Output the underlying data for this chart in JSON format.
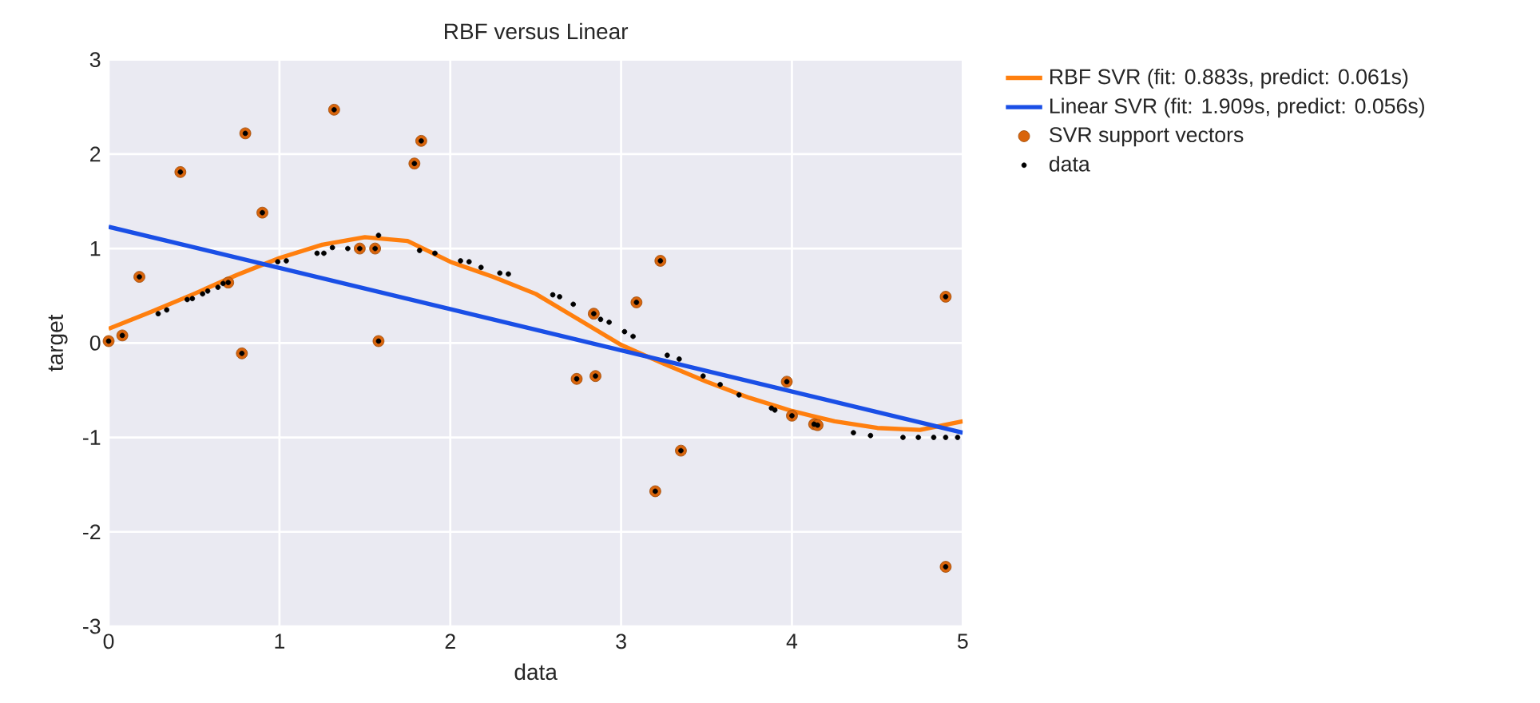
{
  "chart_data": {
    "type": "scatter",
    "title": "RBF versus Linear",
    "xlabel": "data",
    "ylabel": "target",
    "xlim": [
      0,
      5
    ],
    "ylim": [
      -3,
      3
    ],
    "xticks": [
      0,
      1,
      2,
      3,
      4,
      5
    ],
    "yticks": [
      -3,
      -2,
      -1,
      0,
      1,
      2,
      3
    ],
    "grid": true,
    "legend": "right",
    "series": [
      {
        "name": "RBF SVR (fit: 0.883s, predict: 0.061s)",
        "type": "line",
        "color": "#ff7f0e",
        "x": [
          0,
          0.25,
          0.5,
          0.75,
          1,
          1.25,
          1.5,
          1.75,
          2,
          2.25,
          2.5,
          2.75,
          3,
          3.25,
          3.5,
          3.75,
          4,
          4.25,
          4.5,
          4.75,
          5
        ],
        "values": [
          0.15,
          0.33,
          0.52,
          0.72,
          0.9,
          1.04,
          1.12,
          1.08,
          0.86,
          0.7,
          0.52,
          0.25,
          -0.02,
          -0.22,
          -0.41,
          -0.58,
          -0.72,
          -0.83,
          -0.9,
          -0.92,
          -0.83
        ]
      },
      {
        "name": "Linear SVR (fit: 1.909s, predict: 0.056s)",
        "type": "line",
        "color": "#1a4fe6",
        "x": [
          0,
          5
        ],
        "values": [
          1.23,
          -0.95
        ]
      },
      {
        "name": "SVR support vectors",
        "color": "#d9650c",
        "x": [
          0,
          0.08,
          0.18,
          0.42,
          0.7,
          0.78,
          0.8,
          0.9,
          1.32,
          1.47,
          1.56,
          1.58,
          1.79,
          1.83,
          2.74,
          2.84,
          2.85,
          3.09,
          3.2,
          3.23,
          3.35,
          3.97,
          4.0,
          4.13,
          4.15,
          4.9,
          4.9
        ],
        "values": [
          0.02,
          0.08,
          0.7,
          1.81,
          0.64,
          -0.11,
          2.22,
          1.38,
          2.47,
          1.0,
          1.0,
          0.02,
          1.9,
          2.14,
          -0.38,
          0.31,
          -0.35,
          0.43,
          -1.57,
          0.87,
          -1.14,
          -0.41,
          -0.77,
          -0.86,
          -0.87,
          0.49,
          -2.37
        ]
      },
      {
        "name": "data",
        "color": "#000000",
        "x": [
          0,
          0.08,
          0.18,
          0.29,
          0.34,
          0.42,
          0.46,
          0.49,
          0.55,
          0.58,
          0.64,
          0.67,
          0.7,
          0.78,
          0.8,
          0.9,
          0.99,
          1.04,
          1.22,
          1.26,
          1.31,
          1.32,
          1.4,
          1.47,
          1.56,
          1.58,
          1.58,
          1.79,
          1.82,
          1.83,
          1.91,
          2.06,
          2.11,
          2.18,
          2.29,
          2.34,
          2.6,
          2.64,
          2.72,
          2.74,
          2.84,
          2.85,
          2.88,
          2.93,
          3.02,
          3.07,
          3.09,
          3.2,
          3.23,
          3.27,
          3.34,
          3.35,
          3.48,
          3.58,
          3.69,
          3.88,
          3.9,
          3.97,
          4.0,
          4.13,
          4.15,
          4.36,
          4.46,
          4.65,
          4.74,
          4.83,
          4.9,
          4.9,
          4.9,
          4.97
        ],
        "values": [
          0.02,
          0.08,
          0.7,
          0.31,
          0.35,
          1.81,
          0.46,
          0.47,
          0.52,
          0.55,
          0.59,
          0.63,
          0.64,
          -0.11,
          2.22,
          1.38,
          0.86,
          0.87,
          0.95,
          0.95,
          1.01,
          2.47,
          1.0,
          1.0,
          1.0,
          1.14,
          0.02,
          1.9,
          0.98,
          2.14,
          0.95,
          0.87,
          0.86,
          0.8,
          0.74,
          0.73,
          0.51,
          0.49,
          0.41,
          -0.38,
          0.31,
          -0.35,
          0.25,
          0.22,
          0.12,
          0.07,
          0.43,
          -1.57,
          0.87,
          -0.13,
          -0.17,
          -1.14,
          -0.35,
          -0.44,
          -0.55,
          -0.69,
          -0.71,
          -0.41,
          -0.77,
          -0.86,
          -0.87,
          -0.95,
          -0.98,
          -1.0,
          -1.0,
          -1.0,
          -1.0,
          0.49,
          -2.37,
          -1.0
        ]
      }
    ]
  }
}
